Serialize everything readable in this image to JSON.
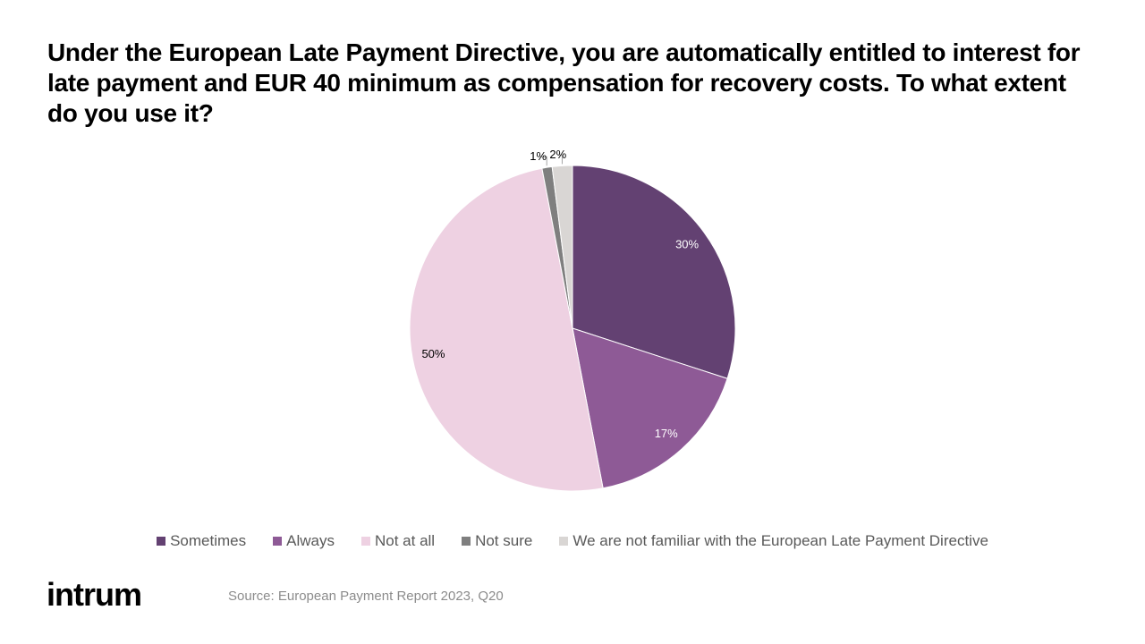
{
  "chart_data": {
    "type": "pie",
    "title": "Under the European Late Payment Directive, you are automatically entitled to interest for late payment and EUR 40 minimum as compensation for recovery costs. To what extent do you use it?",
    "categories": [
      "Sometimes",
      "Always",
      "Not at all",
      "Not sure",
      "We are not familiar with the European Late Payment Directive"
    ],
    "values": [
      30,
      17,
      50,
      1,
      2
    ],
    "value_labels": [
      "30%",
      "17%",
      "50%",
      "1%",
      "2%"
    ],
    "colors": [
      "#634172",
      "#8e5a96",
      "#eed1e2",
      "#7f7f7f",
      "#d9d6d4"
    ],
    "label_colors": [
      "#ffffff",
      "#ffffff",
      "#000000",
      "#000000",
      "#000000"
    ],
    "legend": "bottom"
  },
  "source": "Source: European Payment Report 2023, Q20",
  "logo": "intrum"
}
